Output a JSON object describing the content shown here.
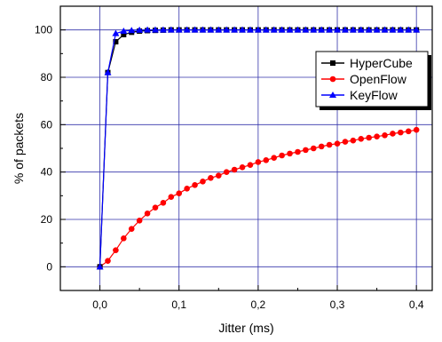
{
  "chart_data": {
    "type": "line",
    "xlabel": "Jitter (ms)",
    "ylabel": "% of packets",
    "xlim": [
      -0.05,
      0.42
    ],
    "ylim": [
      -10,
      110
    ],
    "xticks": [
      0.0,
      0.1,
      0.2,
      0.3,
      0.4
    ],
    "xtick_labels": [
      "0,0",
      "0,1",
      "0,2",
      "0,3",
      "0,4"
    ],
    "yticks": [
      0,
      20,
      40,
      60,
      80,
      100
    ],
    "ytick_labels": [
      "0",
      "20",
      "40",
      "60",
      "80",
      "100"
    ],
    "grid": true,
    "legend_position": "top-right",
    "x": [
      0.0,
      0.01,
      0.02,
      0.03,
      0.04,
      0.05,
      0.06,
      0.07,
      0.08,
      0.09,
      0.1,
      0.11,
      0.12,
      0.13,
      0.14,
      0.15,
      0.16,
      0.17,
      0.18,
      0.19,
      0.2,
      0.21,
      0.22,
      0.23,
      0.24,
      0.25,
      0.26,
      0.27,
      0.28,
      0.29,
      0.3,
      0.31,
      0.32,
      0.33,
      0.34,
      0.35,
      0.36,
      0.37,
      0.38,
      0.39,
      0.4
    ],
    "series": [
      {
        "name": "HyperCube",
        "color": "#000000",
        "marker": "square",
        "values": [
          0,
          82,
          95,
          98,
          99,
          99.5,
          99.7,
          99.8,
          99.9,
          100,
          100,
          100,
          100,
          100,
          100,
          100,
          100,
          100,
          100,
          100,
          100,
          100,
          100,
          100,
          100,
          100,
          100,
          100,
          100,
          100,
          100,
          100,
          100,
          100,
          100,
          100,
          100,
          100,
          100,
          100,
          100
        ]
      },
      {
        "name": "OpenFlow",
        "color": "#ff0000",
        "marker": "circle",
        "values": [
          0,
          2.5,
          7,
          12,
          16,
          19.5,
          22.5,
          25,
          27,
          29.5,
          31,
          33,
          34.5,
          36,
          37.5,
          38.5,
          40,
          41,
          42,
          43,
          44.2,
          45,
          46,
          47,
          47.8,
          48.5,
          49.3,
          50,
          50.8,
          51.5,
          52,
          52.8,
          53.3,
          54,
          54.5,
          55,
          55.5,
          56.2,
          56.7,
          57.2,
          57.8
        ]
      },
      {
        "name": "KeyFlow",
        "color": "#0000ff",
        "marker": "triangle",
        "values": [
          0,
          82,
          98.5,
          99.5,
          99.8,
          99.9,
          100,
          100,
          100,
          100,
          100,
          100,
          100,
          100,
          100,
          100,
          100,
          100,
          100,
          100,
          100,
          100,
          100,
          100,
          100,
          100,
          100,
          100,
          100,
          100,
          100,
          100,
          100,
          100,
          100,
          100,
          100,
          100,
          100,
          100,
          100
        ]
      }
    ]
  }
}
